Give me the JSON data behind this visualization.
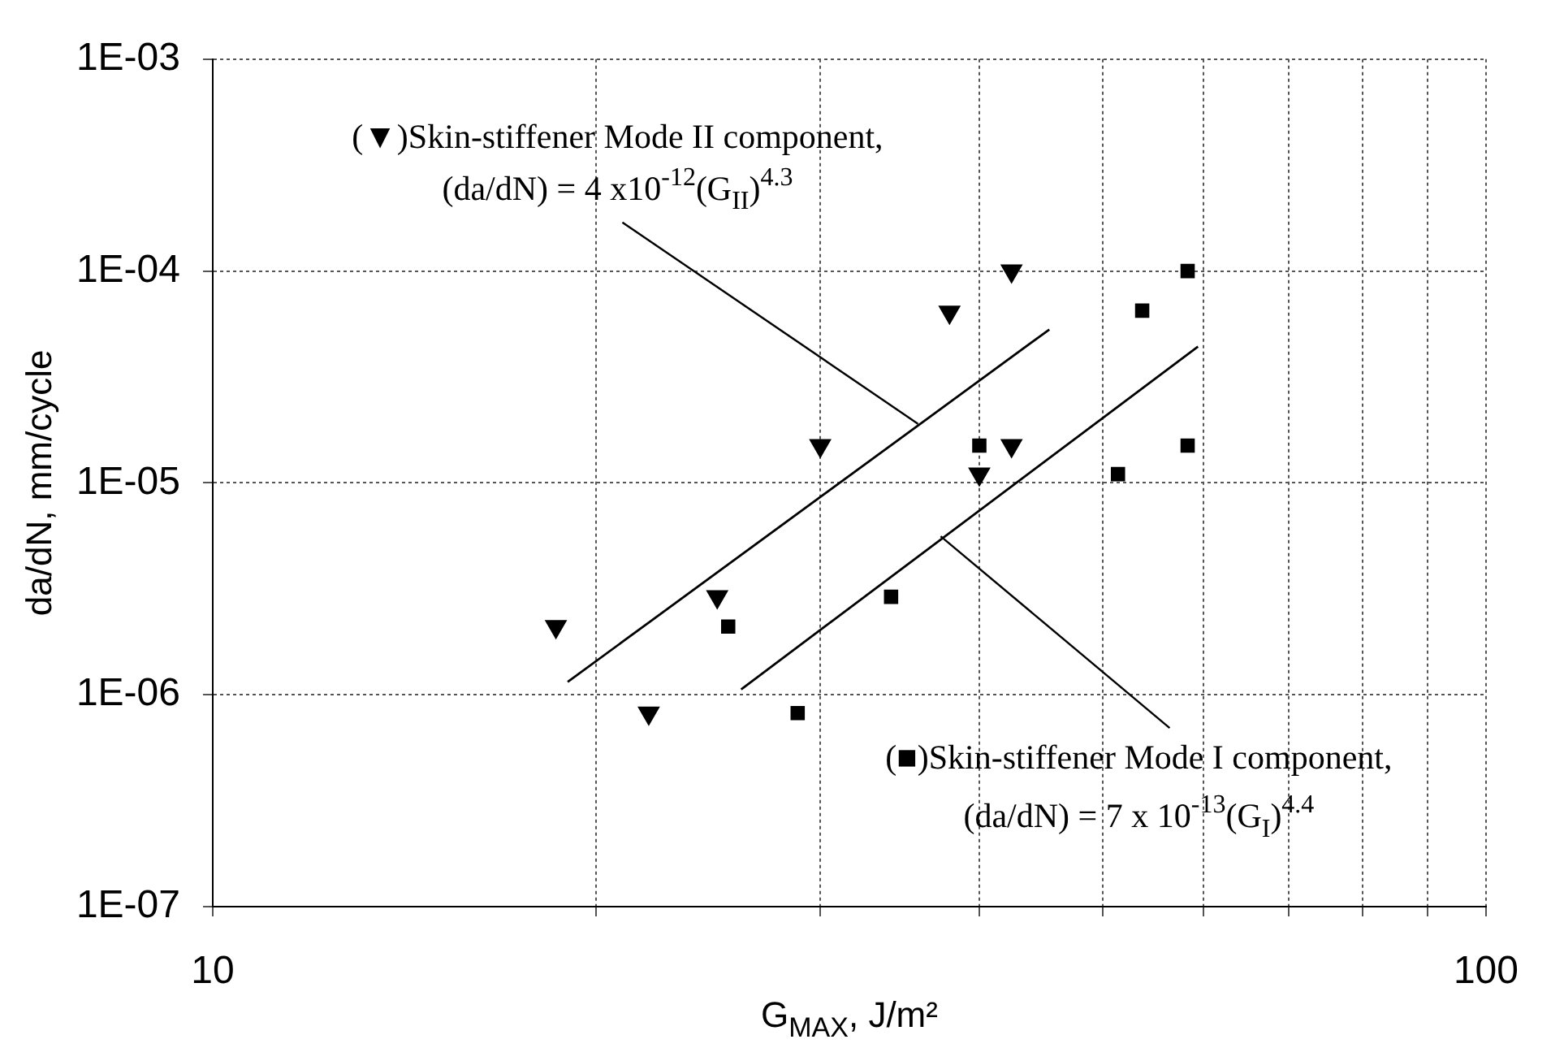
{
  "chart_data": {
    "type": "scatter",
    "xlabel": "G$_{MAX}$, J/m²",
    "ylabel": "da/dN, mm/cycle",
    "log": "xy",
    "xlim": [
      10,
      100
    ],
    "ylim": [
      1e-07,
      0.001
    ],
    "xticks": [
      10,
      {
        "value": 20,
        "label": null
      },
      {
        "value": 30,
        "label": null
      },
      {
        "value": 40,
        "label": null
      },
      {
        "value": 50,
        "label": null
      },
      {
        "value": 60,
        "label": null
      },
      {
        "value": 70,
        "label": null
      },
      {
        "value": 80,
        "label": null
      },
      {
        "value": 90,
        "label": null
      },
      100
    ],
    "yticks": [
      {
        "value": 1e-07,
        "label": "1E-07"
      },
      {
        "value": 1e-06,
        "label": "1E-06"
      },
      {
        "value": 1e-05,
        "label": "1E-05"
      },
      {
        "value": 0.0001,
        "label": "1E-04"
      },
      {
        "value": 0.001,
        "label": "1E-03"
      }
    ],
    "grid": true,
    "legend": false,
    "series": [
      {
        "marker": "triangle",
        "color": "#000000",
        "x": [
          18.6,
          22,
          24.9,
          30,
          37.9,
          42.4,
          42.4,
          40
        ],
        "values": [
          2.1e-06,
          8.2e-07,
          2.9e-06,
          1.5e-05,
          6.4e-05,
          0.0001,
          1.5e-05,
          1.1e-05
        ]
      },
      {
        "marker": "square",
        "color": "#000000",
        "x": [
          25.4,
          28.8,
          34.1,
          40,
          51.4,
          53.7,
          58.3,
          58.3
        ],
        "values": [
          2.1e-06,
          8.2e-07,
          2.9e-06,
          1.5e-05,
          1.1e-05,
          6.5e-05,
          0.0001,
          1.5e-05
        ]
      },
      {
        "type": "line",
        "marker": "none",
        "color": "#000000",
        "x": [
          19,
          45.4
        ],
        "values": [
          1.15e-06,
          5.3e-05
        ]
      },
      {
        "type": "line",
        "marker": "none",
        "color": "#000000",
        "x": [
          26,
          59.4
        ],
        "values": [
          1.06e-06,
          4.4e-05
        ]
      }
    ],
    "annotations": [
      {
        "text": "(▼)Skin-stiffener Mode II component,\n(da/dN) = 4 x10$^{-12}$(G$_{II}$)$^{4.3}$",
        "x": 35.8,
        "y": 1.9e-05
      },
      {
        "text": "(■)Skin-stiffener Mode I component,\n(da/dN) = 7 x 10$^{-13}$(G$_{I}$)$^{4.4}$",
        "x": 37.3,
        "y": 5.6e-06
      }
    ]
  }
}
